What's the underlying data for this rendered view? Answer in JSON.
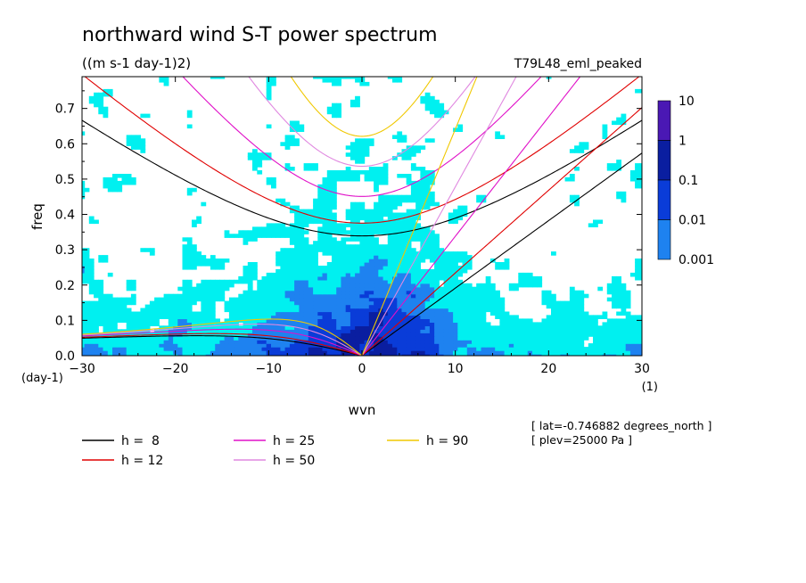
{
  "chart_data": {
    "type": "heatmap",
    "title": "northward wind S-T power spectrum",
    "units": "((m s-1 day-1)2)",
    "run": "T79L48_eml_peaked",
    "xlabel": "wvn",
    "ylabel": "freq",
    "x_unit_label": "(1)",
    "y_unit_label": "(day-1)",
    "xlim": [
      -30,
      30
    ],
    "ylim": [
      0,
      0.79
    ],
    "x_ticks": [
      -30,
      -20,
      -10,
      0,
      10,
      20,
      30
    ],
    "x_tick_labels": [
      "-30",
      "-20",
      "-10",
      "0",
      "10",
      "20",
      "30"
    ],
    "y_ticks": [
      0.0,
      0.1,
      0.2,
      0.3,
      0.4,
      0.5,
      0.6,
      0.7
    ],
    "y_tick_labels": [
      "0.0",
      "0.1",
      "0.2",
      "0.3",
      "0.4",
      "0.5",
      "0.6",
      "0.7"
    ],
    "colorbar": {
      "levels": [
        "10",
        "1",
        "0.1",
        "0.01",
        "0.001"
      ],
      "colors": [
        "#4a18b4",
        "#0a1ea0",
        "#0a3cd8",
        "#1e82f0",
        "#00f0f0"
      ]
    },
    "dispersion_curves": [
      {
        "label": "h =  8",
        "h": 8,
        "color": "#000000"
      },
      {
        "label": "h = 12",
        "h": 12,
        "color": "#e00000"
      },
      {
        "label": "h = 25",
        "h": 25,
        "color": "#e010c8"
      },
      {
        "label": "h = 50",
        "h": 50,
        "color": "#e088e0"
      },
      {
        "label": "h = 90",
        "h": 90,
        "color": "#f0c800"
      }
    ],
    "annotations": [
      "[ lat=-0.746882 degrees_north ]",
      "[ plev=25000 Pa ]"
    ]
  }
}
